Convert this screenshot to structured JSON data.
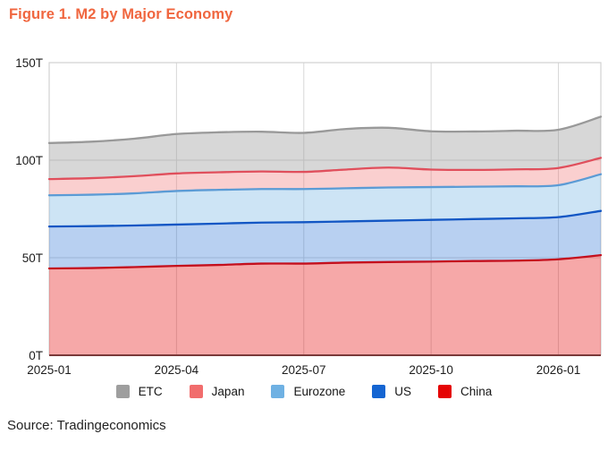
{
  "title": "Figure 1. M2 by Major Economy",
  "source": "Source: Tradingeconomics",
  "colors": {
    "title": "#f0663f",
    "grid": "#d7d7d7",
    "plot_border": "#d2d2d2",
    "baseline": "#7a3a3a",
    "axis_text": "#1c1c1c",
    "background": "#ffffff"
  },
  "chart_data": {
    "type": "area",
    "stacked": true,
    "title": "Figure 1. M2 by Major Economy",
    "unit": "T (trillions)",
    "ylim": [
      0,
      150
    ],
    "grid": true,
    "legend_position": "bottom",
    "x": [
      "2025-01",
      "2025-02",
      "2025-03",
      "2025-04",
      "2025-05",
      "2025-06",
      "2025-07",
      "2025-08",
      "2025-09",
      "2025-10",
      "2025-11",
      "2025-12",
      "2026-01",
      "2026-02"
    ],
    "x_ticks": [
      {
        "index": 0,
        "label": "2025-01"
      },
      {
        "index": 3,
        "label": "2025-04"
      },
      {
        "index": 6,
        "label": "2025-07"
      },
      {
        "index": 9,
        "label": "2025-10"
      },
      {
        "index": 12,
        "label": "2026-01"
      }
    ],
    "y_ticks": [
      {
        "value": 0,
        "label": "0T"
      },
      {
        "value": 50,
        "label": "50T"
      },
      {
        "value": 100,
        "label": "100T"
      },
      {
        "value": 150,
        "label": "150T"
      }
    ],
    "series": [
      {
        "name": "China",
        "swatch_color": "#e50505",
        "line_color": "#c40f1d",
        "fill_color": "rgba(229,5,5,0.35)",
        "values": [
          44.5,
          44.7,
          45.2,
          45.8,
          46.3,
          47.0,
          47.0,
          47.5,
          47.8,
          48.0,
          48.3,
          48.5,
          49.2,
          51.3
        ],
        "cumulative": [
          44.5,
          44.7,
          45.2,
          45.8,
          46.3,
          47.0,
          47.0,
          47.5,
          47.8,
          48.0,
          48.3,
          48.5,
          49.2,
          51.3
        ]
      },
      {
        "name": "US",
        "swatch_color": "#1565d2",
        "line_color": "#1256c4",
        "fill_color": "rgba(21,101,210,0.30)",
        "values": [
          21.5,
          21.5,
          21.3,
          21.2,
          21.2,
          21.0,
          21.2,
          21.1,
          21.2,
          21.4,
          21.5,
          21.7,
          21.6,
          22.7
        ],
        "cumulative": [
          66.0,
          66.2,
          66.5,
          67.0,
          67.5,
          68.0,
          68.2,
          68.6,
          69.0,
          69.4,
          69.8,
          70.2,
          70.8,
          74.0
        ]
      },
      {
        "name": "Eurozone",
        "swatch_color": "#6fb1e3",
        "line_color": "#5b9bd5",
        "fill_color": "rgba(111,177,227,0.35)",
        "values": [
          16.0,
          16.1,
          16.5,
          17.2,
          17.3,
          17.2,
          17.0,
          17.0,
          17.0,
          16.8,
          16.6,
          16.4,
          16.4,
          18.8
        ],
        "cumulative": [
          82.0,
          82.3,
          83.0,
          84.2,
          84.8,
          85.2,
          85.2,
          85.6,
          86.0,
          86.2,
          86.4,
          86.6,
          87.2,
          92.8
        ]
      },
      {
        "name": "Japan",
        "swatch_color": "#f16d6d",
        "line_color": "#e04f5c",
        "fill_color": "rgba(241,109,109,0.33)",
        "values": [
          8.3,
          8.5,
          8.8,
          9.0,
          9.0,
          9.0,
          8.8,
          9.6,
          10.2,
          9.0,
          8.6,
          8.7,
          8.8,
          8.4
        ],
        "cumulative": [
          90.3,
          90.8,
          91.8,
          93.2,
          93.8,
          94.2,
          94.0,
          95.2,
          96.2,
          95.2,
          95.0,
          95.3,
          96.0,
          101.2
        ]
      },
      {
        "name": "ETC",
        "swatch_color": "#9e9e9e",
        "line_color": "#999999",
        "fill_color": "rgba(150,150,150,0.38)",
        "values": [
          18.5,
          18.7,
          19.2,
          20.2,
          20.5,
          20.4,
          20.0,
          20.8,
          20.4,
          19.6,
          19.7,
          19.8,
          19.6,
          21.1
        ],
        "cumulative": [
          108.8,
          109.5,
          111.0,
          113.4,
          114.3,
          114.6,
          114.0,
          116.0,
          116.6,
          114.8,
          114.7,
          115.1,
          115.6,
          122.3
        ]
      }
    ],
    "legend": [
      {
        "label": "ETC",
        "color": "#9e9e9e"
      },
      {
        "label": "Japan",
        "color": "#f16d6d"
      },
      {
        "label": "Eurozone",
        "color": "#6fb1e3"
      },
      {
        "label": "US",
        "color": "#1565d2"
      },
      {
        "label": "China",
        "color": "#e50505"
      }
    ]
  }
}
